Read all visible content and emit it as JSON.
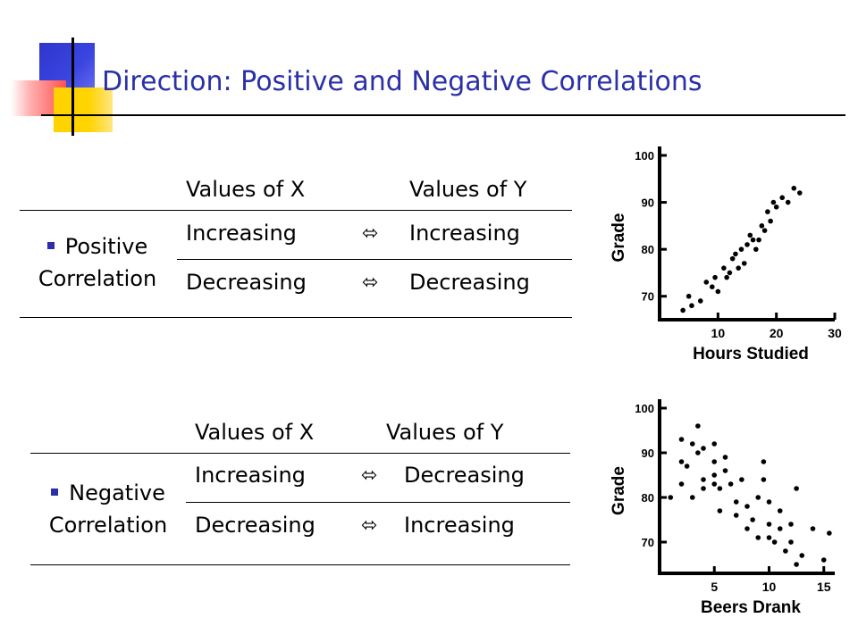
{
  "title": "Direction: Positive and Negative Correlations",
  "positive_table": {
    "row_label_line1": "Positive",
    "row_label_line2": "Correlation",
    "header_x": "Values of X",
    "header_y": "Values of Y",
    "rows": [
      {
        "x": "Increasing",
        "arrow": "⬄",
        "y": "Increasing"
      },
      {
        "x": "Decreasing",
        "arrow": "⬄",
        "y": "Decreasing"
      }
    ]
  },
  "negative_table": {
    "row_label_line1": "Negative",
    "row_label_line2": "Correlation",
    "header_x": "Values of X",
    "header_y": "Values of Y",
    "rows": [
      {
        "x": "Increasing",
        "arrow": "⬄",
        "y": "Decreasing"
      },
      {
        "x": "Decreasing",
        "arrow": "⬄",
        "y": "Increasing"
      }
    ]
  },
  "chart_data": [
    {
      "type": "scatter",
      "xlabel": "Hours Studied",
      "ylabel": "Grade",
      "xticks": [
        "10",
        "20",
        "30"
      ],
      "yticks": [
        "70",
        "80",
        "90",
        "100"
      ],
      "xlim": [
        0,
        30
      ],
      "ylim": [
        65,
        100
      ],
      "points": [
        [
          4,
          67
        ],
        [
          5,
          70
        ],
        [
          5.5,
          68
        ],
        [
          7,
          69
        ],
        [
          8,
          73
        ],
        [
          9,
          72
        ],
        [
          9.5,
          74
        ],
        [
          10,
          71
        ],
        [
          11,
          76
        ],
        [
          11.5,
          74
        ],
        [
          12,
          75
        ],
        [
          12.5,
          78
        ],
        [
          13,
          79
        ],
        [
          13.5,
          76
        ],
        [
          14,
          80
        ],
        [
          14.5,
          77
        ],
        [
          15,
          81
        ],
        [
          15.5,
          83
        ],
        [
          16,
          82
        ],
        [
          16.5,
          80
        ],
        [
          17,
          82
        ],
        [
          17.5,
          85
        ],
        [
          18,
          84
        ],
        [
          18.5,
          88
        ],
        [
          19,
          86
        ],
        [
          19.5,
          90
        ],
        [
          20,
          89
        ],
        [
          21,
          91
        ],
        [
          22,
          90
        ],
        [
          23,
          93
        ],
        [
          24,
          92
        ]
      ]
    },
    {
      "type": "scatter",
      "xlabel": "Beers Drank",
      "ylabel": "Grade",
      "xticks": [
        "5",
        "10",
        "15"
      ],
      "yticks": [
        "70",
        "80",
        "90",
        "100"
      ],
      "xlim": [
        0,
        16
      ],
      "ylim": [
        63,
        100
      ],
      "points": [
        [
          1,
          80
        ],
        [
          2,
          93
        ],
        [
          2,
          88
        ],
        [
          2.5,
          87
        ],
        [
          2,
          83
        ],
        [
          3,
          92
        ],
        [
          3,
          80
        ],
        [
          3.5,
          96
        ],
        [
          3.5,
          90
        ],
        [
          4,
          91
        ],
        [
          4,
          84
        ],
        [
          4,
          82
        ],
        [
          5,
          92
        ],
        [
          5,
          88
        ],
        [
          5,
          85
        ],
        [
          5,
          83
        ],
        [
          5.5,
          82
        ],
        [
          5.5,
          77
        ],
        [
          6,
          89
        ],
        [
          6,
          86
        ],
        [
          6.5,
          83
        ],
        [
          7,
          79
        ],
        [
          7,
          76
        ],
        [
          7.5,
          84
        ],
        [
          8,
          78
        ],
        [
          8,
          73
        ],
        [
          8.5,
          75
        ],
        [
          9,
          71
        ],
        [
          9,
          80
        ],
        [
          9.5,
          88
        ],
        [
          9.5,
          84
        ],
        [
          10,
          79
        ],
        [
          10,
          74
        ],
        [
          10,
          71
        ],
        [
          10.5,
          70
        ],
        [
          11,
          73
        ],
        [
          11,
          77
        ],
        [
          11.5,
          68
        ],
        [
          12,
          74
        ],
        [
          12,
          70
        ],
        [
          12.5,
          65
        ],
        [
          12.5,
          82
        ],
        [
          13,
          67
        ],
        [
          14,
          73
        ],
        [
          15,
          66
        ],
        [
          15.5,
          72
        ]
      ]
    }
  ]
}
